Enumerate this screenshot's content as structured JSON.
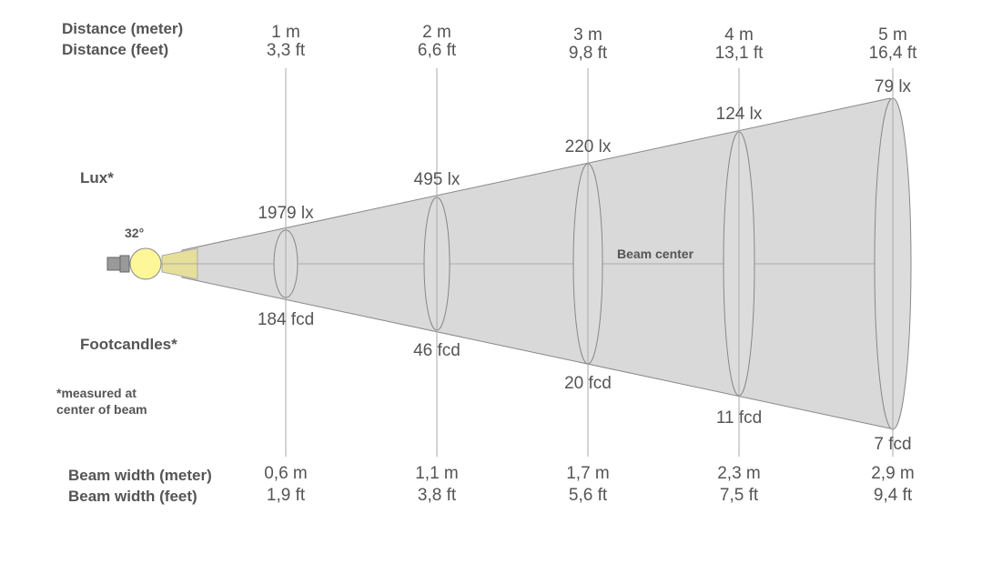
{
  "row_labels": {
    "distance_meter": "Distance (meter)",
    "distance_feet": "Distance (feet)",
    "lux": "Lux*",
    "footcandles": "Footcandles*",
    "note_line1": "*measured at",
    "note_line2": "center of beam",
    "beam_width_meter": "Beam width (meter)",
    "beam_width_feet": "Beam width (feet)"
  },
  "beam_angle": "32°",
  "beam_center_label": "Beam center",
  "colors": {
    "cone": "#d9d9d9",
    "bulb": "#fdf79a",
    "near_cone": "#e6df9a",
    "line": "#aaaaaa",
    "text": "#555555"
  },
  "distances": [
    {
      "meter": "1 m",
      "feet": "3,3 ft",
      "lux": "1979 lx",
      "fcd": "184 fcd",
      "width_m": "0,6 m",
      "width_ft": "1,9 ft"
    },
    {
      "meter": "2 m",
      "feet": "6,6 ft",
      "lux": "495 lx",
      "fcd": "46 fcd",
      "width_m": "1,1 m",
      "width_ft": "3,8 ft"
    },
    {
      "meter": "3 m",
      "feet": "9,8 ft",
      "lux": "220 lx",
      "fcd": "20 fcd",
      "width_m": "1,7 m",
      "width_ft": "5,6 ft"
    },
    {
      "meter": "4 m",
      "feet": "13,1 ft",
      "lux": "124 lx",
      "fcd": "11 fcd",
      "width_m": "2,3 m",
      "width_ft": "7,5 ft"
    },
    {
      "meter": "5 m",
      "feet": "16,4 ft",
      "lux": "79 lx",
      "fcd": "7 fcd",
      "width_m": "2,9 m",
      "width_ft": "9,4 ft"
    }
  ]
}
